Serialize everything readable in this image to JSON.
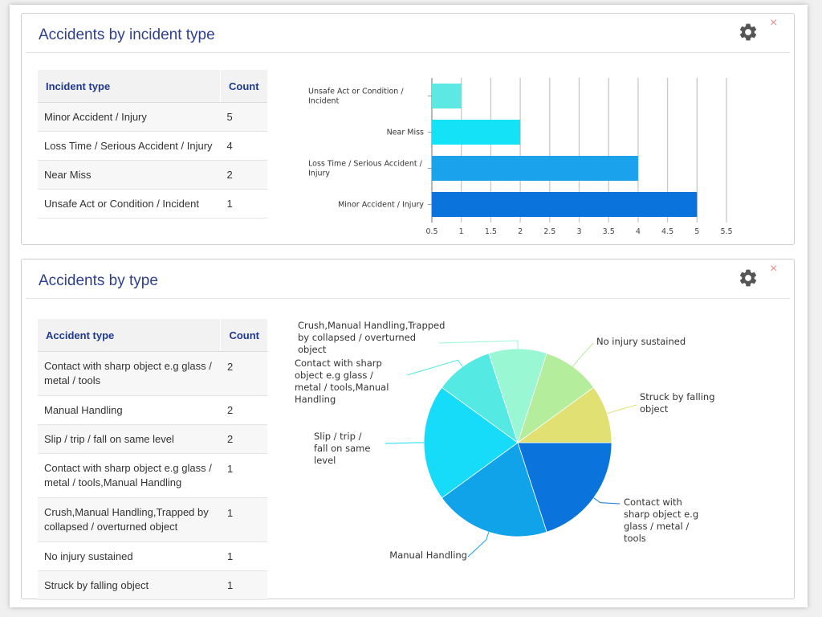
{
  "panels": [
    {
      "title": "Accidents by incident type",
      "table": {
        "headers": [
          "Incident type",
          "Count"
        ],
        "rows": [
          [
            "Minor Accident / Injury",
            "5"
          ],
          [
            "Loss Time / Serious Accident / Injury",
            "4"
          ],
          [
            "Near Miss",
            "2"
          ],
          [
            "Unsafe Act or Condition / Incident",
            "1"
          ]
        ]
      }
    },
    {
      "title": "Accidents by type",
      "table": {
        "headers": [
          "Accident type",
          "Count"
        ],
        "rows": [
          [
            "Contact with sharp object e.g glass / metal / tools",
            "2"
          ],
          [
            "Manual Handling",
            "2"
          ],
          [
            "Slip / trip / fall on same level",
            "2"
          ],
          [
            "Contact with sharp object e.g glass / metal / tools,Manual Handling",
            "1"
          ],
          [
            "Crush,Manual Handling,Trapped by collapsed / overturned object",
            "1"
          ],
          [
            "No injury sustained",
            "1"
          ],
          [
            "Struck by falling object",
            "1"
          ]
        ]
      }
    }
  ],
  "icons": {
    "settings": "gear-icon",
    "close": "close-icon",
    "close_glyph": "×"
  },
  "colors": {
    "title": "#2e3f8f",
    "header_text": "#1f3a8f",
    "close": "#e8908a"
  },
  "chart_data": [
    {
      "type": "bar",
      "orientation": "horizontal",
      "categories": [
        "Unsafe Act or Condition / Incident",
        "Near Miss",
        "Loss Time / Serious Accident / Injury",
        "Minor Accident / Injury"
      ],
      "values": [
        1,
        2,
        4,
        5
      ],
      "colors": [
        "#5ee8e3",
        "#14e2f7",
        "#1aa3ec",
        "#0a74dc"
      ],
      "xlim": [
        0.5,
        5.5
      ],
      "xticks": [
        "0.5",
        "1",
        "1.5",
        "2",
        "2.5",
        "3",
        "3.5",
        "4",
        "4.5",
        "5",
        "5.5"
      ],
      "grid": true
    },
    {
      "type": "pie",
      "labels": [
        "Contact with sharp object e.g glass / metal / tools",
        "Manual Handling",
        "Slip / trip / fall on same level",
        "Contact with sharp object e.g glass / metal / tools,Manual Handling",
        "Crush,Manual Handling,Trapped by collapsed / overturned object",
        "No injury sustained",
        "Struck by falling object"
      ],
      "values": [
        2,
        2,
        2,
        1,
        1,
        1,
        1
      ],
      "colors": [
        "#0a74dc",
        "#10a3ea",
        "#16dcf9",
        "#55e9e3",
        "#99f7d4",
        "#b4ee9d",
        "#e1e072"
      ]
    }
  ]
}
